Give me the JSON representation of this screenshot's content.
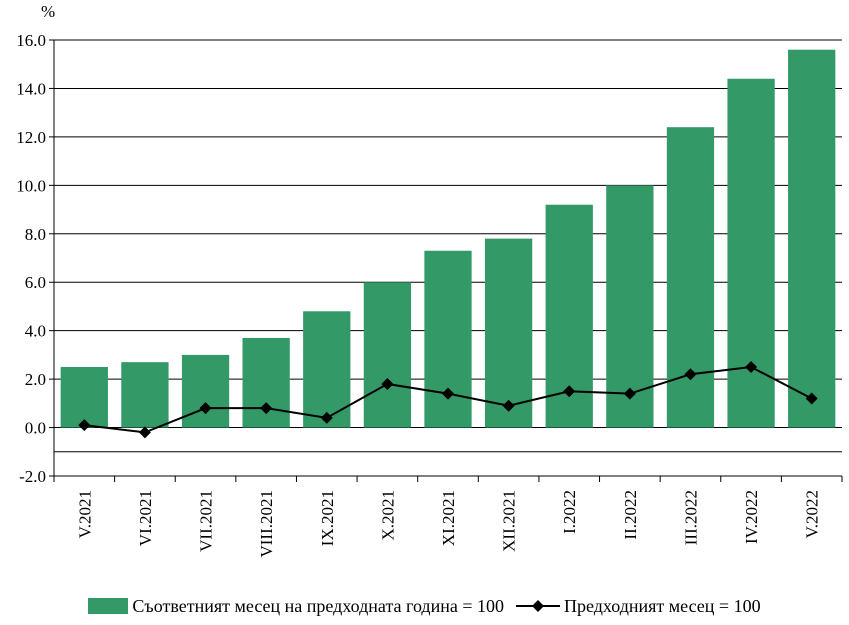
{
  "chart_data": {
    "type": "bar+line",
    "unit_label": "%",
    "categories": [
      "V.2021",
      "VI.2021",
      "VII.2021",
      "VIII.2021",
      "IX.2021",
      "X.2021",
      "XI.2021",
      "XII.2021",
      "I.2022",
      "II.2022",
      "III.2022",
      "IV.2022",
      "V.2022"
    ],
    "series": [
      {
        "name": "Съответният месец на предходната година = 100",
        "type": "bar",
        "color": "#339966",
        "values": [
          2.5,
          2.7,
          3.0,
          3.7,
          4.8,
          6.0,
          7.3,
          7.8,
          9.2,
          10.0,
          12.4,
          14.4,
          15.6
        ]
      },
      {
        "name": "Предходният месец = 100",
        "type": "line",
        "marker": "diamond",
        "color": "#000000",
        "values": [
          0.1,
          -0.2,
          0.8,
          0.8,
          0.4,
          1.8,
          1.4,
          0.9,
          1.5,
          1.4,
          2.2,
          2.5,
          1.2
        ]
      }
    ],
    "ylim": [
      -2.0,
      16.0
    ],
    "yticks": [
      "-2.0",
      "0.0",
      "2.0",
      "4.0",
      "6.0",
      "8.0",
      "10.0",
      "12.0",
      "14.0",
      "16.0"
    ],
    "grid": true,
    "legend_position": "bottom"
  }
}
